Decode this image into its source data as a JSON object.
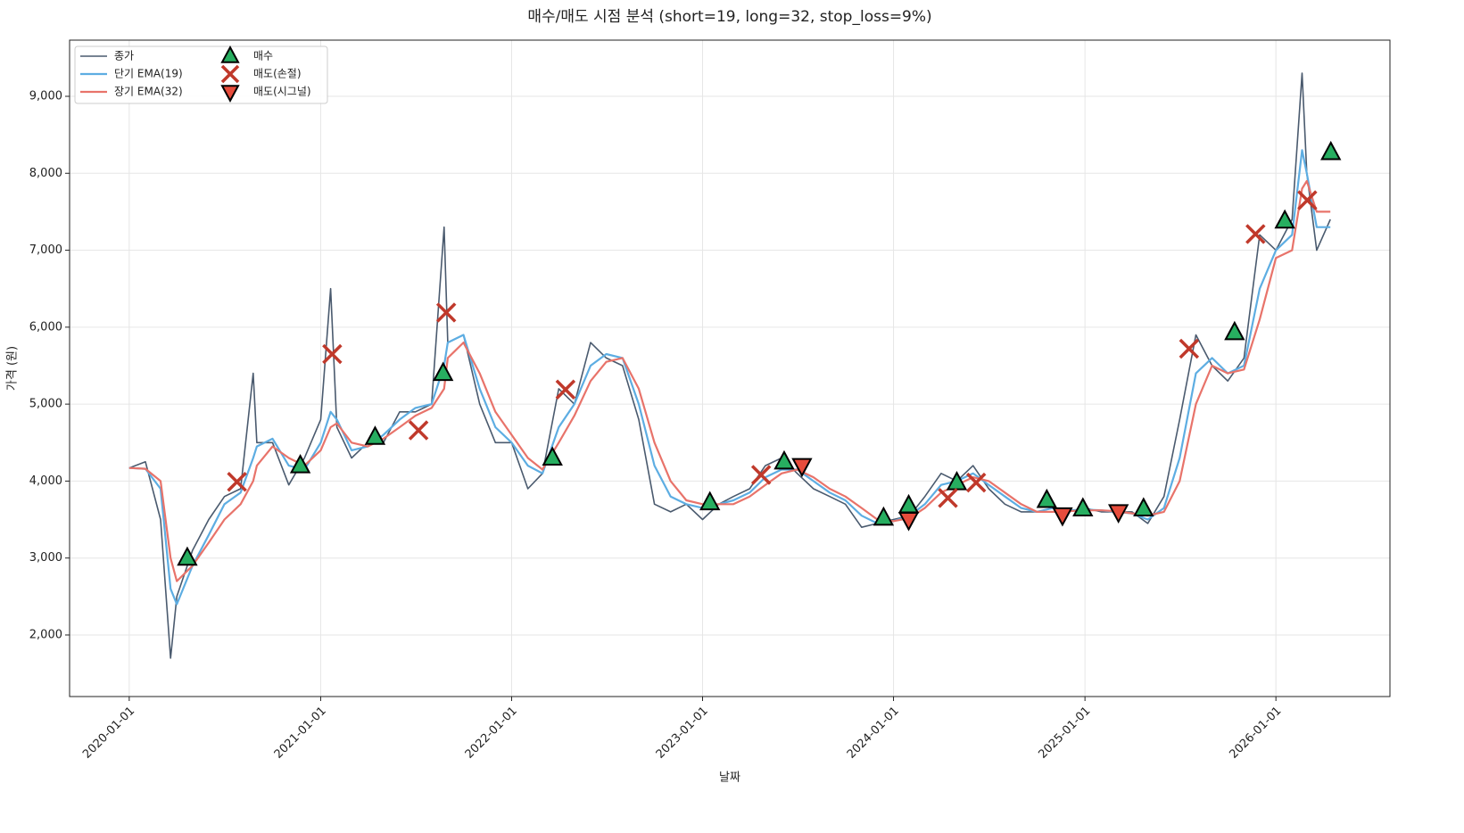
{
  "chart_data": {
    "type": "line",
    "title": "매수/매도 시점 분석 (short=19, long=32, stop_loss=9%)",
    "x_label": "날짜",
    "y_label": "가격 (원)",
    "xlim": [
      "2019-09-09",
      "2026-08-07"
    ],
    "xticks": [
      "2020-01-01",
      "2021-01-01",
      "2022-01-01",
      "2023-01-01",
      "2024-01-01",
      "2025-01-01",
      "2026-01-01"
    ],
    "ylim": [
      1200,
      9730
    ],
    "yticks": [
      {
        "value": 2000,
        "label": "2,000"
      },
      {
        "value": 3000,
        "label": "3,000"
      },
      {
        "value": 4000,
        "label": "4,000"
      },
      {
        "value": 5000,
        "label": "5,000"
      },
      {
        "value": 6000,
        "label": "6,000"
      },
      {
        "value": 7000,
        "label": "7,000"
      },
      {
        "value": 8000,
        "label": "8,000"
      },
      {
        "value": 9000,
        "label": "9,000"
      }
    ],
    "grid": true,
    "legend": "upper left",
    "x": [
      "2020-01-01",
      "2020-02-01",
      "2020-03-01",
      "2020-03-20",
      "2020-04-01",
      "2020-05-01",
      "2020-06-01",
      "2020-07-01",
      "2020-08-01",
      "2020-08-25",
      "2020-09-01",
      "2020-10-01",
      "2020-11-01",
      "2020-12-01",
      "2021-01-01",
      "2021-01-20",
      "2021-02-01",
      "2021-03-01",
      "2021-04-01",
      "2021-05-01",
      "2021-06-01",
      "2021-07-01",
      "2021-08-01",
      "2021-08-25",
      "2021-09-01",
      "2021-10-01",
      "2021-11-01",
      "2021-12-01",
      "2022-01-01",
      "2022-02-01",
      "2022-03-01",
      "2022-04-01",
      "2022-05-01",
      "2022-06-01",
      "2022-07-01",
      "2022-08-01",
      "2022-09-01",
      "2022-10-01",
      "2022-11-01",
      "2022-12-01",
      "2023-01-01",
      "2023-02-01",
      "2023-03-01",
      "2023-04-01",
      "2023-05-01",
      "2023-06-01",
      "2023-07-01",
      "2023-08-01",
      "2023-09-01",
      "2023-10-01",
      "2023-11-01",
      "2023-12-01",
      "2024-01-01",
      "2024-02-01",
      "2024-03-01",
      "2024-04-01",
      "2024-05-01",
      "2024-06-01",
      "2024-07-01",
      "2024-08-01",
      "2024-09-01",
      "2024-10-01",
      "2024-11-01",
      "2024-12-01",
      "2025-01-01",
      "2025-02-01",
      "2025-03-01",
      "2025-04-01",
      "2025-05-01",
      "2025-06-01",
      "2025-07-01",
      "2025-08-01",
      "2025-09-01",
      "2025-10-01",
      "2025-11-01",
      "2025-12-01",
      "2026-01-01",
      "2026-02-01",
      "2026-02-20",
      "2026-03-01",
      "2026-03-20",
      "2026-04-15"
    ],
    "series": [
      {
        "name": "종가",
        "color": "#4a5a6e",
        "width": 1.6,
        "values": [
          4170,
          4250,
          3500,
          1700,
          2500,
          3100,
          3500,
          3800,
          3900,
          5400,
          4500,
          4500,
          3950,
          4300,
          4800,
          6500,
          4700,
          4300,
          4500,
          4500,
          4900,
          4900,
          5000,
          7300,
          5800,
          5900,
          5000,
          4500,
          4500,
          3900,
          4100,
          5200,
          5000,
          5800,
          5600,
          5500,
          4800,
          3700,
          3600,
          3700,
          3500,
          3700,
          3800,
          3900,
          4200,
          4300,
          4100,
          3900,
          3800,
          3700,
          3400,
          3450,
          3500,
          3550,
          3800,
          4100,
          4000,
          4200,
          3900,
          3700,
          3600,
          3600,
          3650,
          3600,
          3650,
          3600,
          3600,
          3600,
          3450,
          3800,
          4800,
          5900,
          5500,
          5300,
          5600,
          7200,
          7000,
          7400,
          9300,
          8000,
          7000,
          7400
        ]
      },
      {
        "name": "단기 EMA(19)",
        "color": "#5dade2",
        "width": 2.2,
        "values": [
          4170,
          4160,
          3900,
          2600,
          2400,
          2900,
          3300,
          3700,
          3850,
          4300,
          4450,
          4550,
          4200,
          4150,
          4500,
          4900,
          4800,
          4400,
          4450,
          4600,
          4800,
          4950,
          5000,
          5500,
          5800,
          5900,
          5200,
          4700,
          4500,
          4200,
          4100,
          4700,
          5000,
          5500,
          5650,
          5600,
          5000,
          4200,
          3800,
          3700,
          3650,
          3700,
          3750,
          3850,
          4050,
          4150,
          4150,
          4000,
          3850,
          3750,
          3550,
          3450,
          3480,
          3550,
          3700,
          3950,
          4000,
          4100,
          3950,
          3800,
          3650,
          3600,
          3650,
          3620,
          3630,
          3620,
          3600,
          3580,
          3500,
          3650,
          4300,
          5400,
          5600,
          5400,
          5500,
          6500,
          7000,
          7200,
          8300,
          8000,
          7300,
          7300
        ]
      },
      {
        "name": "장기 EMA(32)",
        "color": "#e8736a",
        "width": 2.2,
        "values": [
          4170,
          4160,
          4000,
          3000,
          2700,
          2900,
          3200,
          3500,
          3700,
          4000,
          4200,
          4450,
          4300,
          4200,
          4400,
          4700,
          4750,
          4500,
          4450,
          4550,
          4700,
          4850,
          4950,
          5200,
          5600,
          5800,
          5400,
          4900,
          4600,
          4300,
          4150,
          4500,
          4850,
          5300,
          5550,
          5600,
          5200,
          4500,
          4000,
          3750,
          3700,
          3700,
          3700,
          3800,
          3950,
          4100,
          4150,
          4050,
          3900,
          3800,
          3650,
          3500,
          3480,
          3520,
          3650,
          3850,
          3950,
          4050,
          4000,
          3850,
          3700,
          3600,
          3600,
          3610,
          3620,
          3620,
          3610,
          3580,
          3550,
          3600,
          4000,
          5000,
          5500,
          5400,
          5450,
          6100,
          6900,
          7000,
          7800,
          7900,
          7500,
          7500
        ]
      }
    ],
    "signals": [
      {
        "name": "매수",
        "color": "#27ae60",
        "marker": "triangle-up",
        "x": [
          "2020-04-21",
          "2020-11-23",
          "2021-04-15",
          "2021-08-23",
          "2022-03-20",
          "2023-01-15",
          "2023-06-06",
          "2023-12-13",
          "2024-01-30",
          "2024-05-01",
          "2024-10-20",
          "2024-12-28",
          "2025-04-23",
          "2025-10-14",
          "2026-01-18",
          "2026-04-16"
        ],
        "values": [
          3000,
          4200,
          4570,
          5400,
          4300,
          3720,
          4250,
          3520,
          3680,
          3980,
          3750,
          3640,
          3640,
          5930,
          7380,
          8270
        ]
      },
      {
        "name": "매도(손절)",
        "color": "#c0392b",
        "marker": "x",
        "x": [
          "2020-07-25",
          "2021-01-23",
          "2021-07-07",
          "2021-08-29",
          "2022-04-14",
          "2023-04-23",
          "2024-04-14",
          "2024-06-07",
          "2025-07-19",
          "2025-11-23",
          "2026-03-02"
        ],
        "values": [
          3990,
          5650,
          4660,
          6190,
          5190,
          4080,
          3780,
          3980,
          5720,
          7210,
          7650
        ]
      },
      {
        "name": "매도(시그널)",
        "color": "#e74c3c",
        "marker": "triangle-down",
        "x": [
          "2023-07-10",
          "2024-01-30",
          "2024-11-19",
          "2025-03-06"
        ],
        "values": [
          4200,
          3500,
          3560,
          3600
        ]
      }
    ]
  }
}
